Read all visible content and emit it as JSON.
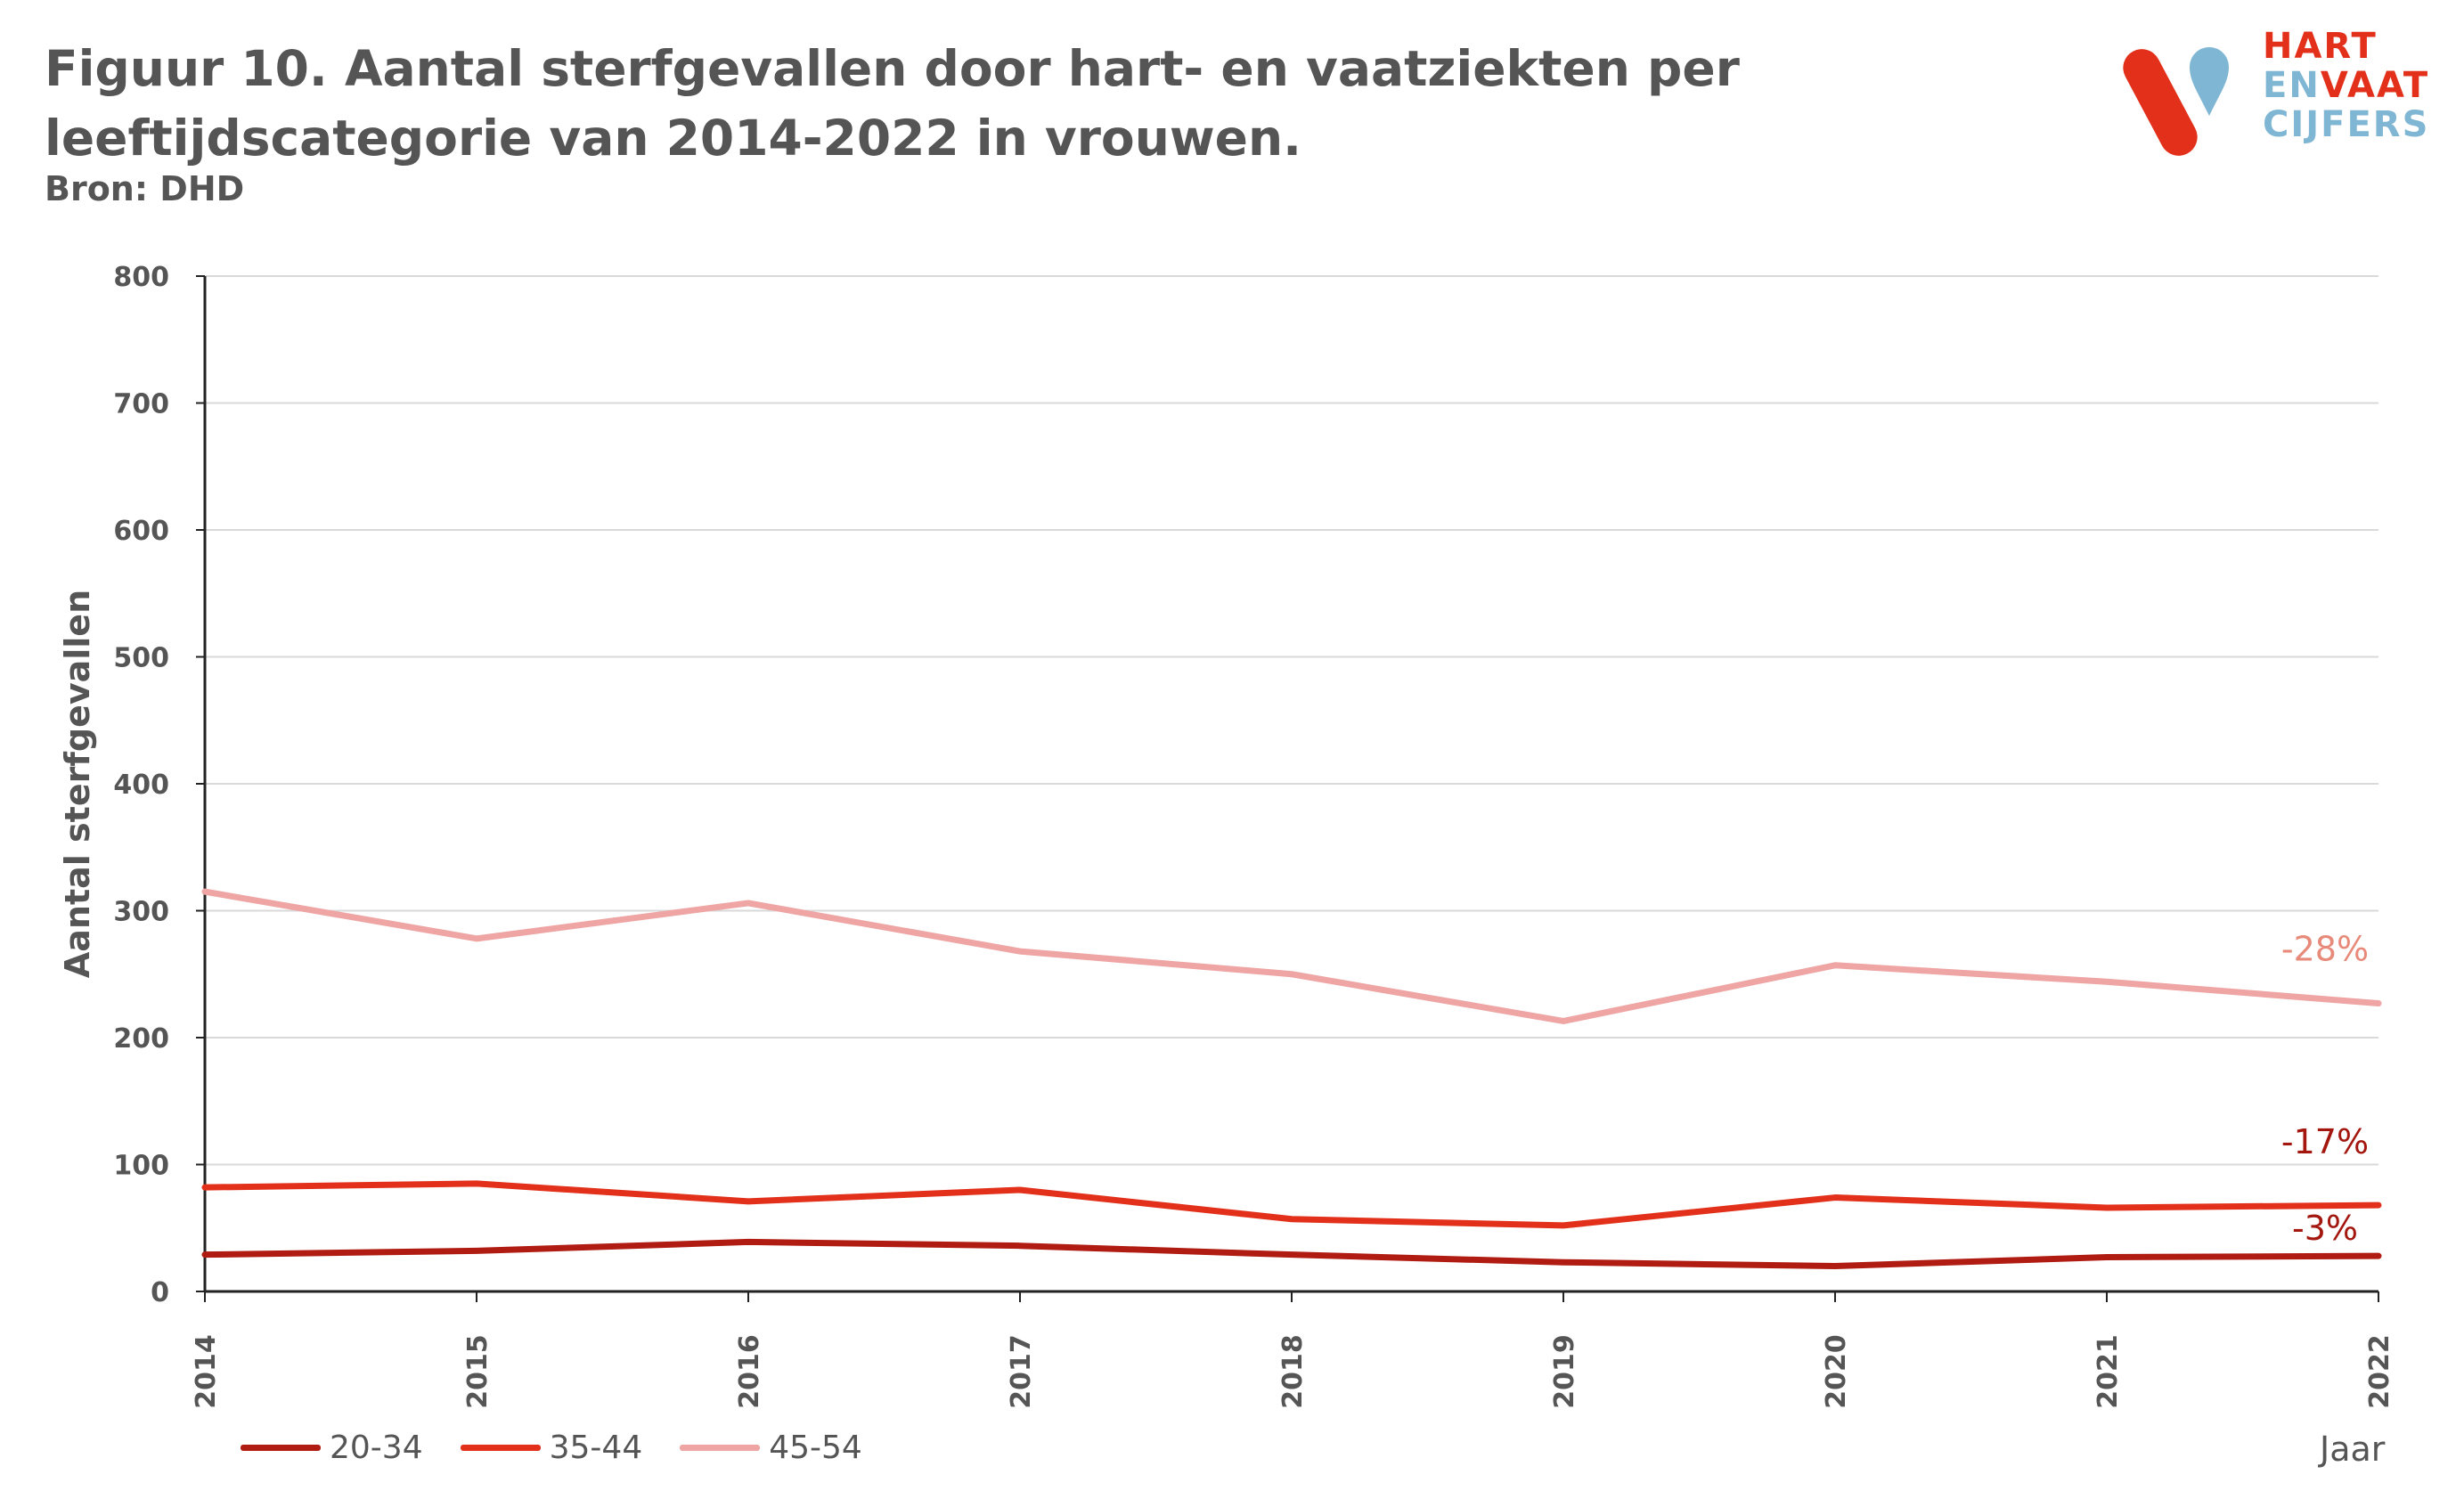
{
  "header": {
    "title": "Figuur 10. Aantal sterfgevallen door hart- en vaatziekten per leeftijdscategorie van 2014-2022 in vrouwen.",
    "source": "Bron: DHD"
  },
  "logo": {
    "line1": "HART",
    "line2a": "EN",
    "line2b": "VAAT",
    "line3": "CIJFERS"
  },
  "colors": {
    "s20_34": "#b01c12",
    "s35_44": "#e2301b",
    "s45_54": "#eea5a4",
    "grid": "#d9d9d9",
    "axis": "#222222"
  },
  "chart_data": {
    "type": "line",
    "x": [
      2014,
      2015,
      2016,
      2017,
      2018,
      2019,
      2020,
      2021,
      2022
    ],
    "x_tick_labels": [
      "2014",
      "2015",
      "2016",
      "2017",
      "2018",
      "2019",
      "2020",
      "2021",
      "2022"
    ],
    "y_ticks": [
      "0",
      "100",
      "200",
      "300",
      "400",
      "500",
      "600",
      "700",
      "800"
    ],
    "ylim": [
      0,
      800
    ],
    "xlabel": "Jaar",
    "ylabel": "Aantal sterfgevallen",
    "grid": true,
    "legend_position": "bottom-left",
    "series": [
      {
        "name": "20-34",
        "color": "#b01c12",
        "values": [
          29,
          32,
          39,
          36,
          29,
          23,
          20,
          27,
          28
        ],
        "annotation": "-3%"
      },
      {
        "name": "35-44",
        "color": "#e2301b",
        "values": [
          82,
          85,
          71,
          80,
          57,
          52,
          74,
          66,
          68
        ],
        "annotation": "-17%"
      },
      {
        "name": "45-54",
        "color": "#eea5a4",
        "values": [
          315,
          278,
          306,
          268,
          250,
          213,
          257,
          244,
          227
        ],
        "annotation": "-28%"
      }
    ]
  }
}
